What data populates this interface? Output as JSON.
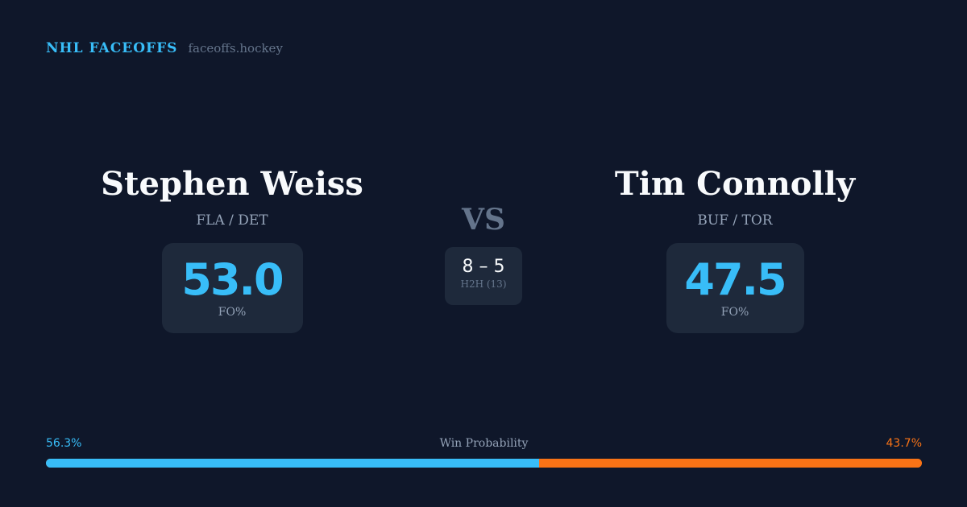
{
  "brand": {
    "title": "NHL FACEOFFS",
    "url": "faceoffs.hockey"
  },
  "player1": {
    "name": "Stephen Weiss",
    "teams": "FLA / DET",
    "fo_pct": "53.0",
    "fo_label": "FO%"
  },
  "player2": {
    "name": "Tim Connolly",
    "teams": "BUF / TOR",
    "fo_pct": "47.5",
    "fo_label": "FO%"
  },
  "vs": "VS",
  "h2h": {
    "score": "8 – 5",
    "label": "H2H (13)"
  },
  "win_probability": {
    "label": "Win Probability",
    "left": "56.3%",
    "right": "43.7%",
    "left_value": 56.3,
    "colors": {
      "left": "#38bdf8",
      "right": "#f97316"
    }
  }
}
